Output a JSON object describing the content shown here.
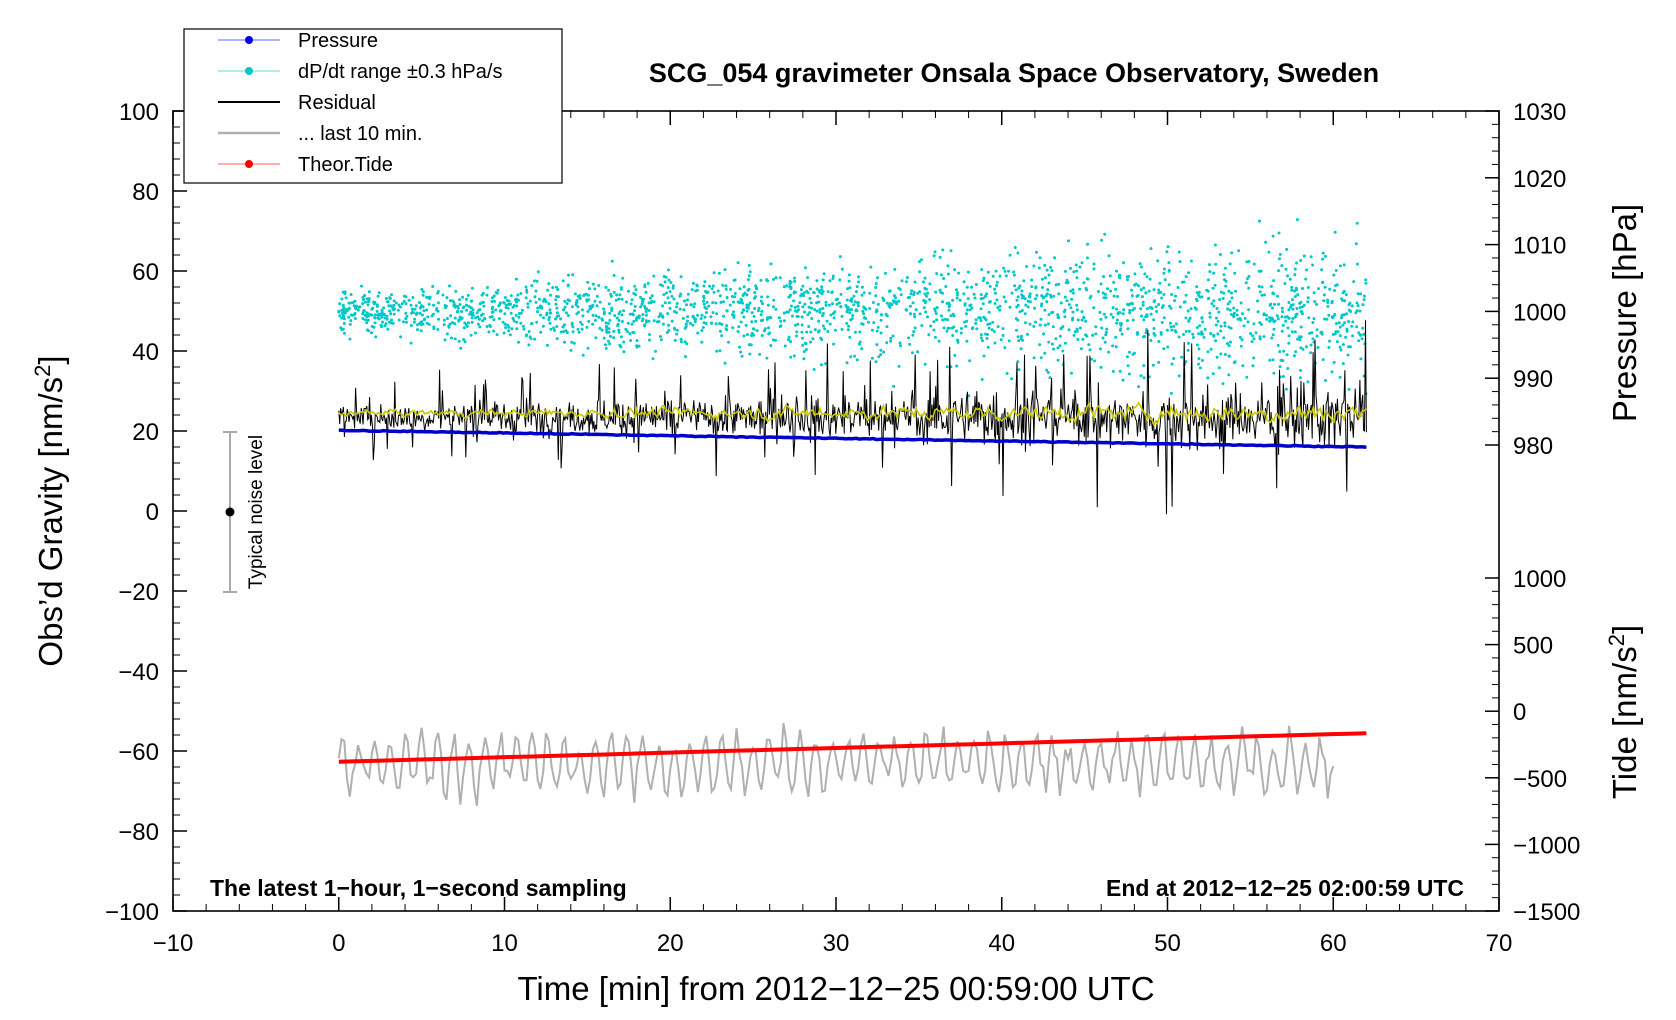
{
  "chart_data": {
    "type": "line",
    "title": "SCG_054 gravimeter Onsala Space Observatory, Sweden",
    "xlabel": "Time [min] from 2012−12−25 00:59:00 UTC",
    "ylabel_left": "Obs’d Gravity [nm/s",
    "ylabel_right_top": "Pressure [hPa]",
    "ylabel_right_bottom": "Tide [nm/s",
    "superscript": "2",
    "label_close": "]",
    "xlim": [
      -10,
      70
    ],
    "ylim": [
      -100,
      100
    ],
    "pressure_ylim": [
      980,
      1030
    ],
    "tide_ylim": [
      -1500,
      1000
    ],
    "x_ticks": [
      "−10",
      "0",
      "10",
      "20",
      "30",
      "40",
      "50",
      "60",
      "70"
    ],
    "x_tick_values": [
      -10,
      0,
      10,
      20,
      30,
      40,
      50,
      60,
      70
    ],
    "y_ticks": [
      "100",
      "80",
      "60",
      "40",
      "20",
      "0",
      "−20",
      "−40",
      "−60",
      "−80",
      "−100"
    ],
    "y_tick_values": [
      100,
      80,
      60,
      40,
      20,
      0,
      -20,
      -40,
      -60,
      -80,
      -100
    ],
    "pressure_ticks": [
      "1030",
      "1020",
      "1010",
      "1000",
      "990",
      "980"
    ],
    "pressure_tick_values": [
      1030,
      1020,
      1010,
      1000,
      990,
      980
    ],
    "tide_ticks": [
      "1000",
      "500",
      "0",
      "−500",
      "−1000",
      "−1500"
    ],
    "tide_tick_values": [
      1000,
      500,
      0,
      -500,
      -1000,
      -1500
    ],
    "legend": [
      {
        "label": "Pressure",
        "color": "#0000ee",
        "style": "line-dot"
      },
      {
        "label": "dP/dt range ±0.3 hPa/s",
        "color": "#00c8c8",
        "style": "line-dot"
      },
      {
        "label": "Residual",
        "color": "#000000",
        "style": "line"
      },
      {
        "label": "... last 10 min.",
        "color": "#b0b0b0",
        "style": "line"
      },
      {
        "label": "Theor.Tide",
        "color": "#ff0000",
        "style": "line-dot"
      }
    ],
    "series": [
      {
        "name": "Pressure",
        "color": "#0000cc",
        "axis": "pressure",
        "x": [
          0,
          62
        ],
        "values": [
          982.2,
          979.7
        ]
      },
      {
        "name": "Theor.Tide",
        "color": "#ff0000",
        "axis": "tide",
        "x": [
          0,
          62
        ],
        "values": [
          -380,
          -165
        ]
      },
      {
        "name": "Residual",
        "color": "#000000",
        "axis": "gravity",
        "x_range": [
          0,
          62
        ],
        "center": 23.5,
        "spread": 8
      },
      {
        "name": "Residual smoothed",
        "color": "#c8c800",
        "axis": "gravity",
        "x_range": [
          0,
          62
        ],
        "center": 24.5,
        "spread": 2
      },
      {
        "name": "dP/dt range",
        "color": "#00c8c8",
        "axis": "gravity",
        "x_range": [
          0,
          62
        ],
        "center": 50,
        "spread": 10
      },
      {
        "name": "... last 10 min.",
        "color": "#b0b0b0",
        "axis": "gravity",
        "x_range": [
          0,
          60
        ],
        "center": -63,
        "spread": 6
      }
    ],
    "noise_bar": {
      "label": "Typical noise level",
      "x": -7,
      "center": 0,
      "half_range": 20
    },
    "note_left": "The latest 1−hour, 1−second sampling",
    "note_right": "End at 2012−12−25 02:00:59 UTC"
  }
}
